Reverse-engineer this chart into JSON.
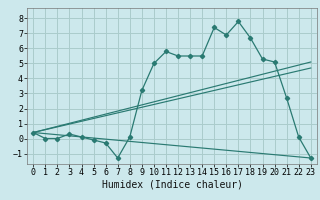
{
  "xlabel": "Humidex (Indice chaleur)",
  "bg_color": "#cce8ec",
  "grid_color": "#aacccc",
  "line_color": "#2a7a72",
  "xlim": [
    -0.5,
    23.5
  ],
  "ylim": [
    -1.7,
    8.7
  ],
  "xticks": [
    0,
    1,
    2,
    3,
    4,
    5,
    6,
    7,
    8,
    9,
    10,
    11,
    12,
    13,
    14,
    15,
    16,
    17,
    18,
    19,
    20,
    21,
    22,
    23
  ],
  "yticks": [
    -1,
    0,
    1,
    2,
    3,
    4,
    5,
    6,
    7,
    8
  ],
  "curve1_x": [
    0,
    1,
    2,
    3,
    4,
    5,
    6,
    7,
    8,
    9,
    10,
    11,
    12,
    13,
    14,
    15,
    16,
    17,
    18,
    19,
    20,
    21,
    22,
    23
  ],
  "curve1_y": [
    0.4,
    0.0,
    0.0,
    0.3,
    0.1,
    -0.1,
    -0.3,
    -1.3,
    0.1,
    3.2,
    5.0,
    5.8,
    5.5,
    5.5,
    5.5,
    7.4,
    6.9,
    7.8,
    6.7,
    5.3,
    5.1,
    2.7,
    0.1,
    -1.3
  ],
  "curve2_x": [
    0,
    23
  ],
  "curve2_y": [
    0.4,
    5.1
  ],
  "curve3_x": [
    0,
    23
  ],
  "curve3_y": [
    0.4,
    4.7
  ],
  "curve4_x": [
    0,
    23
  ],
  "curve4_y": [
    0.4,
    -1.3
  ],
  "tick_fontsize": 6,
  "xlabel_fontsize": 7
}
